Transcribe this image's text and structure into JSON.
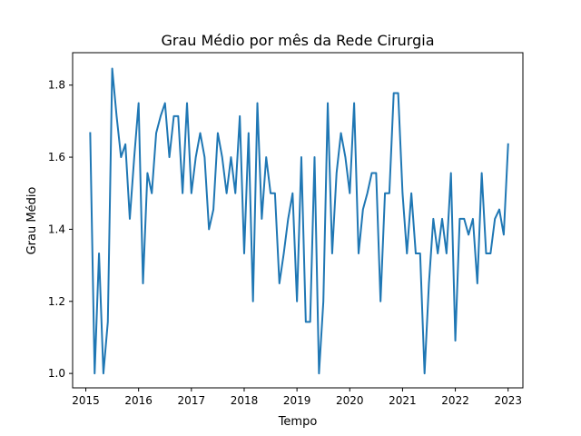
{
  "chart_data": {
    "type": "line",
    "title": "Grau Médio por mês da Rede Cirurgia",
    "xlabel": "Tempo",
    "ylabel": "Grau Médio",
    "xlim": [
      2014.75,
      2023.28
    ],
    "ylim": [
      0.96,
      1.89
    ],
    "xticks": [
      2015,
      2016,
      2017,
      2018,
      2019,
      2020,
      2021,
      2022,
      2023
    ],
    "yticks": [
      1.0,
      1.2,
      1.4,
      1.6,
      1.8
    ],
    "ytick_labels": [
      "1.0",
      "1.2",
      "1.4",
      "1.6",
      "1.8"
    ],
    "grid": false,
    "color": "#1f77b4",
    "series": [
      {
        "x": [
          2015.083,
          2015.167,
          2015.25,
          2015.333,
          2015.417,
          2015.5,
          2015.583,
          2015.667,
          2015.75,
          2015.833,
          2015.917,
          2016.0,
          2016.083,
          2016.167,
          2016.25,
          2016.333,
          2016.417,
          2016.5,
          2016.583,
          2016.667,
          2016.75,
          2016.833,
          2016.917,
          2017.0,
          2017.083,
          2017.167,
          2017.25,
          2017.333,
          2017.417,
          2017.5,
          2017.583,
          2017.667,
          2017.75,
          2017.833,
          2017.917,
          2018.0,
          2018.083,
          2018.167,
          2018.25,
          2018.333,
          2018.417,
          2018.5,
          2018.583,
          2018.667,
          2018.75,
          2018.833,
          2018.917,
          2019.0,
          2019.083,
          2019.167,
          2019.25,
          2019.333,
          2019.417,
          2019.5,
          2019.583,
          2019.667,
          2019.75,
          2019.833,
          2019.917,
          2020.0,
          2020.083,
          2020.167,
          2020.25,
          2020.333,
          2020.417,
          2020.5,
          2020.583,
          2020.667,
          2020.75,
          2020.833,
          2020.917,
          2021.0,
          2021.083,
          2021.167,
          2021.25,
          2021.333,
          2021.417,
          2021.5,
          2021.583,
          2021.667,
          2021.75,
          2021.833,
          2021.917,
          2022.0,
          2022.083,
          2022.167,
          2022.25,
          2022.333,
          2022.417,
          2022.5,
          2022.583,
          2022.667,
          2022.75,
          2022.833,
          2022.917,
          2023.0
        ],
        "values": [
          1.667,
          1.0,
          1.333,
          1.0,
          1.143,
          1.846,
          1.714,
          1.6,
          1.636,
          1.429,
          1.6,
          1.75,
          1.25,
          1.556,
          1.5,
          1.667,
          1.714,
          1.75,
          1.6,
          1.714,
          1.714,
          1.5,
          1.75,
          1.5,
          1.6,
          1.667,
          1.6,
          1.4,
          1.455,
          1.667,
          1.6,
          1.5,
          1.6,
          1.5,
          1.714,
          1.333,
          1.667,
          1.2,
          1.75,
          1.429,
          1.6,
          1.5,
          1.5,
          1.25,
          1.333,
          1.429,
          1.5,
          1.2,
          1.6,
          1.143,
          1.143,
          1.6,
          1.0,
          1.2,
          1.75,
          1.333,
          1.556,
          1.667,
          1.6,
          1.5,
          1.75,
          1.333,
          1.455,
          1.5,
          1.556,
          1.556,
          1.2,
          1.5,
          1.5,
          1.778,
          1.778,
          1.5,
          1.333,
          1.5,
          1.333,
          1.333,
          1.0,
          1.25,
          1.429,
          1.333,
          1.429,
          1.333,
          1.556,
          1.091,
          1.429,
          1.429,
          1.385,
          1.429,
          1.25,
          1.556,
          1.333,
          1.333,
          1.429,
          1.455,
          1.385,
          1.636
        ]
      }
    ]
  }
}
